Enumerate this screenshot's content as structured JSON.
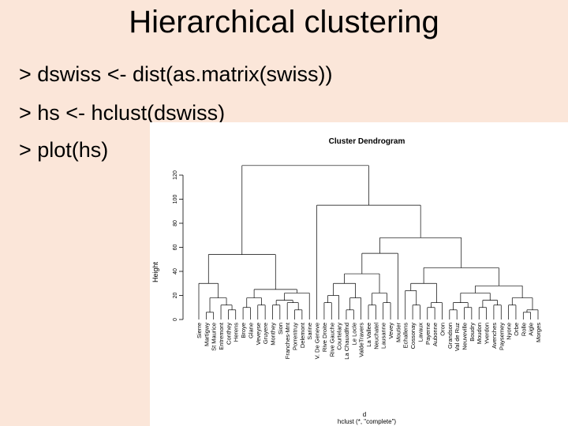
{
  "slide": {
    "title": "Hierarchical clustering",
    "code_lines": [
      "> dswiss <- dist(as.matrix(swiss))",
      "> hs <- hclust(dswiss)",
      "> plot(hs)"
    ]
  },
  "dendrogram": {
    "title": "Cluster Dendrogram",
    "y_label": "Height",
    "y_ticks": [
      0,
      20,
      40,
      60,
      80,
      100,
      120
    ],
    "x_label_d": "d",
    "x_label_call": "hclust (*, \"complete\")",
    "ylim": [
      0,
      130
    ],
    "leaves": [
      "Sierre",
      "Martigwy",
      "St Maurice",
      "Entremont",
      "Conthey",
      "Herens",
      "Broye",
      "Glane",
      "Veveyse",
      "Gruyere",
      "Monthey",
      "Sion",
      "Franches-Mnt",
      "Porrentruy",
      "Delemont",
      "Sarine",
      "V. De Geneve",
      "Rive Droite",
      "Rive Gauche",
      "Courtelary",
      "La Chauxdfnd",
      "Le Locle",
      "ValdeTravers",
      "La Vallee",
      "Neuchatel",
      "Lausanne",
      "Vevey",
      "Moutier",
      "Echallens",
      "Cossonay",
      "Lavaux",
      "Payerne",
      "Aubonne",
      "Oron",
      "Grandson",
      "Val de Ruz",
      "Neuveville",
      "Boudry",
      "Moudon",
      "Yverdon",
      "Avenches",
      "Paysemey",
      "Nyone",
      "Orbe",
      "Rolle",
      "Aigle",
      "Morges"
    ]
  }
}
